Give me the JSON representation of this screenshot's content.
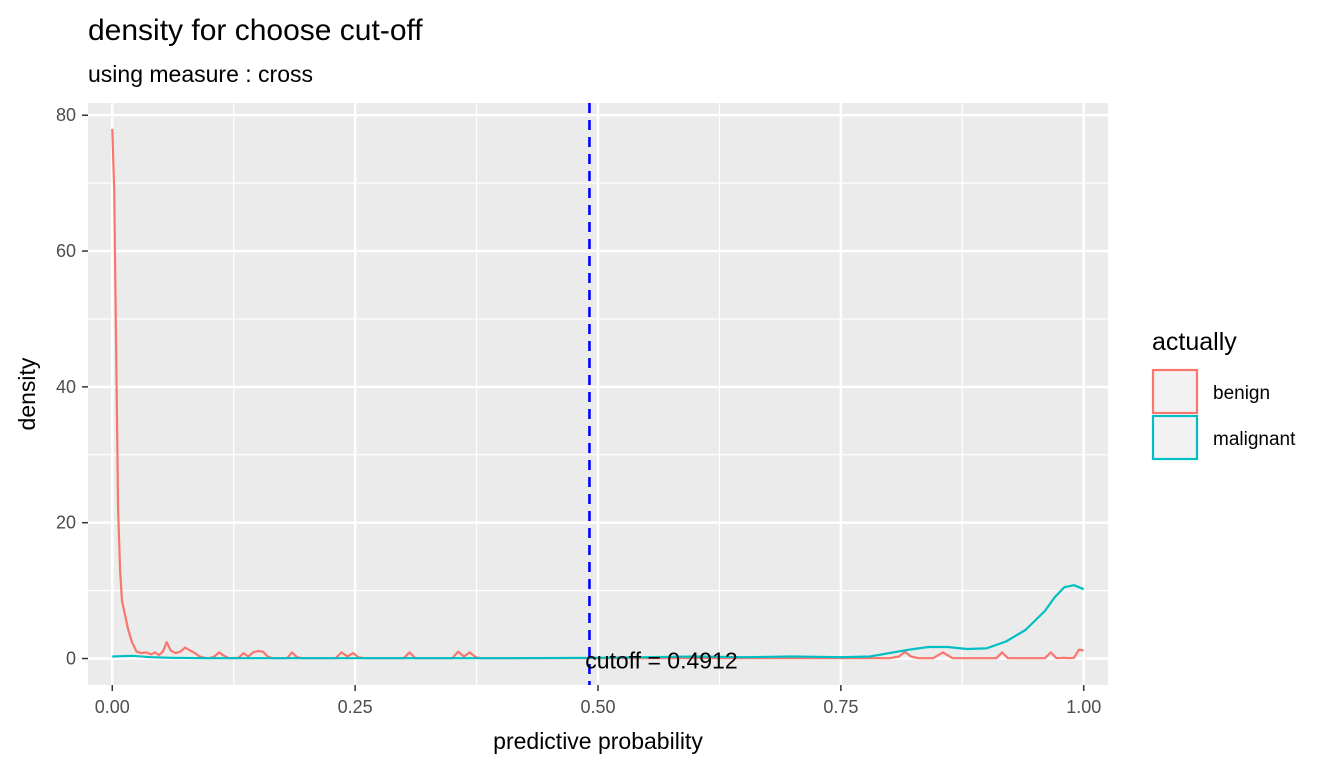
{
  "chart_data": {
    "type": "line",
    "title": "density for choose cut-off",
    "subtitle": "using measure : cross",
    "xlabel": "predictive probability",
    "ylabel": "density",
    "xlim": [
      -0.025,
      1.025
    ],
    "ylim": [
      -3.9,
      81.8
    ],
    "x_ticks": [
      0.0,
      0.25,
      0.5,
      0.75,
      1.0
    ],
    "x_tick_labels": [
      "0.00",
      "0.25",
      "0.50",
      "0.75",
      "1.00"
    ],
    "y_ticks": [
      0,
      20,
      40,
      60,
      80
    ],
    "y_tick_labels": [
      "0",
      "20",
      "40",
      "60",
      "80"
    ],
    "grid": true,
    "legend": {
      "title": "actually",
      "position": "right",
      "entries": [
        "benign",
        "malignant"
      ]
    },
    "cutoff": {
      "value": 0.4912,
      "label": "cutoff = 0.4912",
      "color": "#0000ff",
      "style": "dashed"
    },
    "series": [
      {
        "name": "benign",
        "color": "#f8766d",
        "x": [
          0.0,
          0.002,
          0.004,
          0.006,
          0.008,
          0.01,
          0.013,
          0.016,
          0.02,
          0.025,
          0.03,
          0.035,
          0.04,
          0.044,
          0.048,
          0.052,
          0.056,
          0.06,
          0.065,
          0.07,
          0.075,
          0.08,
          0.085,
          0.09,
          0.095,
          0.1,
          0.105,
          0.11,
          0.115,
          0.12,
          0.13,
          0.135,
          0.14,
          0.145,
          0.15,
          0.155,
          0.16,
          0.165,
          0.18,
          0.185,
          0.19,
          0.195,
          0.23,
          0.236,
          0.242,
          0.248,
          0.253,
          0.26,
          0.3,
          0.306,
          0.312,
          0.35,
          0.356,
          0.362,
          0.368,
          0.374,
          0.38,
          0.4,
          0.8,
          0.81,
          0.816,
          0.822,
          0.83,
          0.845,
          0.855,
          0.865,
          0.91,
          0.916,
          0.922,
          0.96,
          0.966,
          0.972,
          0.98,
          0.985,
          0.99,
          0.995,
          1.0
        ],
        "y": [
          78,
          69,
          45,
          22,
          13,
          8.5,
          6.5,
          4.5,
          2.5,
          1.0,
          0.8,
          0.9,
          0.6,
          0.9,
          0.5,
          1.0,
          2.4,
          1.2,
          0.8,
          1.0,
          1.6,
          1.2,
          0.8,
          0.3,
          0.1,
          0.05,
          0.3,
          0.9,
          0.4,
          0.05,
          0.1,
          0.8,
          0.3,
          0.9,
          1.1,
          1.0,
          0.3,
          0.05,
          0.05,
          0.9,
          0.2,
          0.05,
          0.05,
          0.9,
          0.3,
          0.8,
          0.2,
          0.05,
          0.05,
          0.9,
          0.05,
          0.05,
          1.0,
          0.3,
          0.9,
          0.2,
          0.05,
          0.05,
          0.05,
          0.3,
          1.0,
          0.3,
          0.05,
          0.05,
          0.9,
          0.05,
          0.05,
          0.9,
          0.05,
          0.05,
          0.9,
          0.05,
          0.1,
          0.05,
          0.1,
          1.3,
          1.2
        ]
      },
      {
        "name": "malignant",
        "color": "#00bfc4",
        "x": [
          0.0,
          0.02,
          0.04,
          0.06,
          0.1,
          0.2,
          0.3,
          0.4,
          0.5,
          0.55,
          0.6,
          0.65,
          0.7,
          0.75,
          0.78,
          0.8,
          0.82,
          0.84,
          0.86,
          0.88,
          0.9,
          0.92,
          0.94,
          0.96,
          0.97,
          0.98,
          0.99,
          1.0
        ],
        "y": [
          0.3,
          0.4,
          0.2,
          0.1,
          0.05,
          0.05,
          0.05,
          0.05,
          0.1,
          0.2,
          0.3,
          0.2,
          0.3,
          0.2,
          0.3,
          0.8,
          1.3,
          1.7,
          1.7,
          1.4,
          1.5,
          2.5,
          4.2,
          7.0,
          9.0,
          10.5,
          10.8,
          10.2
        ]
      }
    ]
  }
}
